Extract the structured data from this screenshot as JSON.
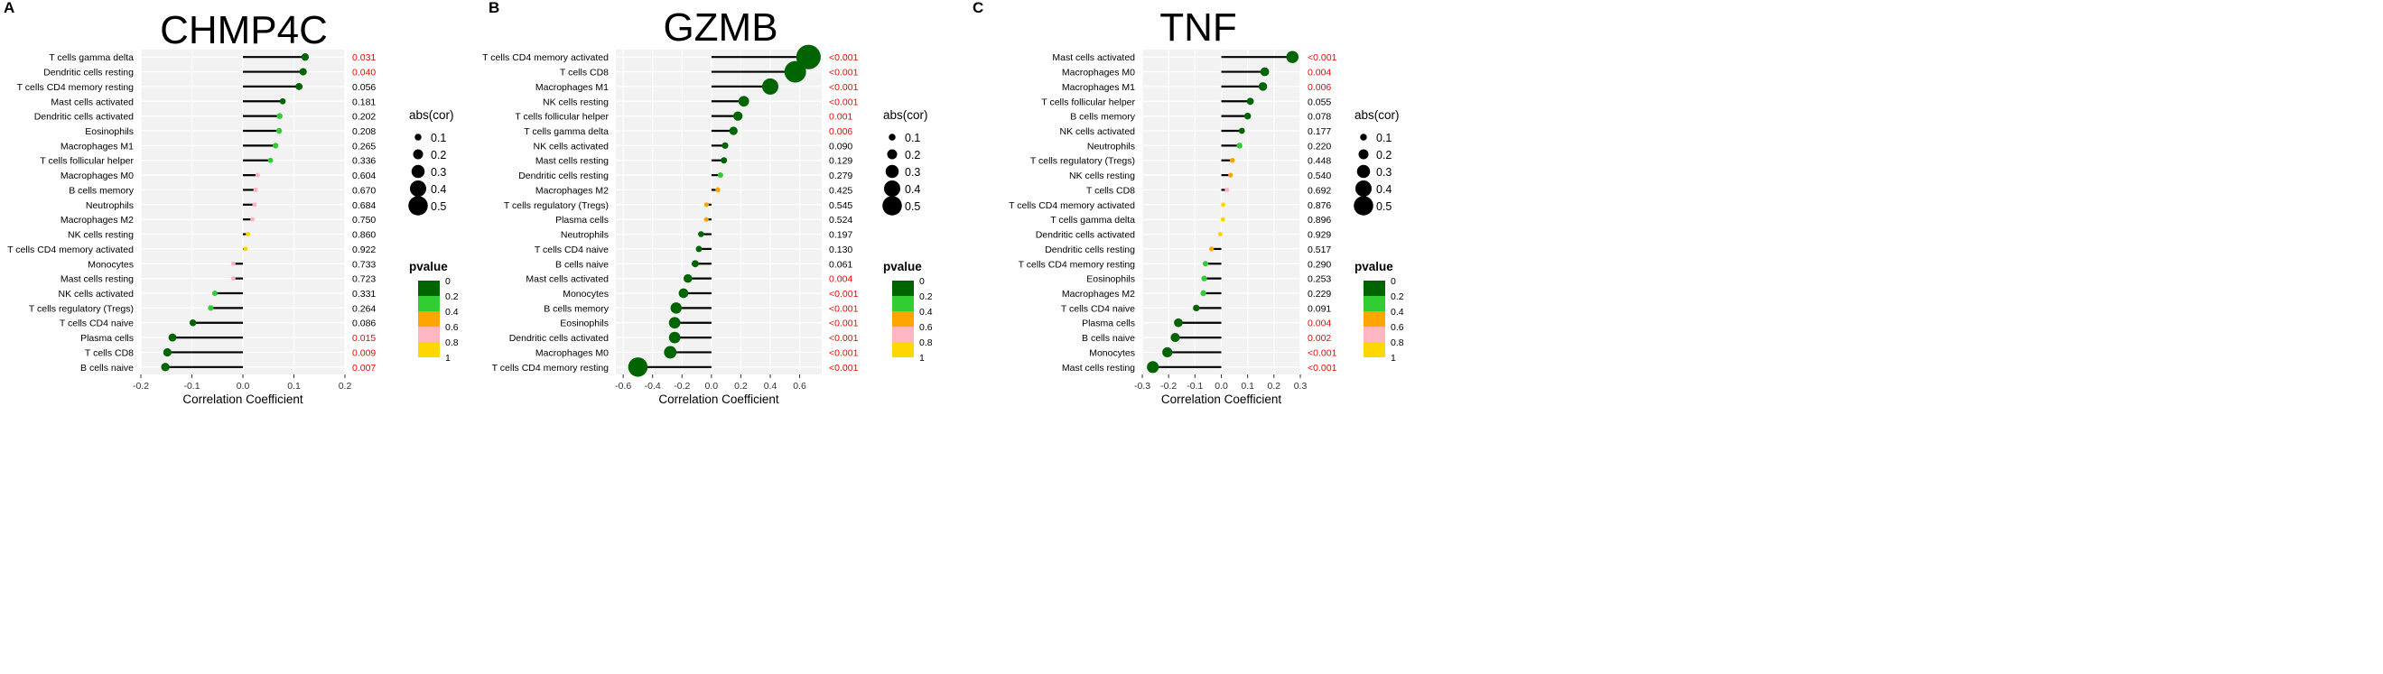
{
  "figure": {
    "size_legend_title": "abs(cor)",
    "pvalue_legend_title": "pvalue",
    "size_legend_labels": [
      "0.1",
      "0.2",
      "0.3",
      "0.4",
      "0.5"
    ],
    "pvalue_legend_labels": [
      "0",
      "0.2",
      "0.4",
      "0.6",
      "0.8",
      "1"
    ],
    "pvalue_colors": [
      "#006400",
      "#32cd32",
      "#ffa500",
      "#ffb6c1",
      "#ffd700"
    ],
    "significant_color": "#ff0000",
    "panel_background": "#f2f2f2"
  },
  "chart_data": [
    {
      "type": "scatter",
      "panel_label": "A",
      "title": "CHMP4C",
      "xlabel": "Correlation Coefficient",
      "ylabel": "",
      "xlim": [
        -0.2,
        0.2
      ],
      "xticks": [
        "-0.2",
        "-0.1",
        "0.0",
        "0.1",
        "0.2"
      ],
      "xtick_values": [
        -0.2,
        -0.1,
        0.0,
        0.1,
        0.2
      ],
      "rows": [
        {
          "label": "T cells gamma delta",
          "cor": 0.122,
          "p": 0.031,
          "p_text": "0.031"
        },
        {
          "label": "Dendritic cells resting",
          "cor": 0.118,
          "p": 0.04,
          "p_text": "0.040"
        },
        {
          "label": "T cells CD4 memory resting",
          "cor": 0.11,
          "p": 0.056,
          "p_text": "0.056"
        },
        {
          "label": "Mast cells activated",
          "cor": 0.078,
          "p": 0.181,
          "p_text": "0.181"
        },
        {
          "label": "Dendritic cells activated",
          "cor": 0.072,
          "p": 0.202,
          "p_text": "0.202"
        },
        {
          "label": "Eosinophils",
          "cor": 0.071,
          "p": 0.208,
          "p_text": "0.208"
        },
        {
          "label": "Macrophages M1",
          "cor": 0.064,
          "p": 0.265,
          "p_text": "0.265"
        },
        {
          "label": "T cells follicular helper",
          "cor": 0.054,
          "p": 0.336,
          "p_text": "0.336"
        },
        {
          "label": "Macrophages M0",
          "cor": 0.029,
          "p": 0.604,
          "p_text": "0.604"
        },
        {
          "label": "B cells memory",
          "cor": 0.025,
          "p": 0.67,
          "p_text": "0.670"
        },
        {
          "label": "Neutrophils",
          "cor": 0.023,
          "p": 0.684,
          "p_text": "0.684"
        },
        {
          "label": "Macrophages M2",
          "cor": 0.019,
          "p": 0.75,
          "p_text": "0.750"
        },
        {
          "label": "NK cells resting",
          "cor": 0.01,
          "p": 0.86,
          "p_text": "0.860"
        },
        {
          "label": "T cells CD4 memory activated",
          "cor": 0.005,
          "p": 0.922,
          "p_text": "0.922"
        },
        {
          "label": "Monocytes",
          "cor": -0.019,
          "p": 0.733,
          "p_text": "0.733"
        },
        {
          "label": "Mast cells resting",
          "cor": -0.019,
          "p": 0.723,
          "p_text": "0.723"
        },
        {
          "label": "NK cells activated",
          "cor": -0.055,
          "p": 0.331,
          "p_text": "0.331"
        },
        {
          "label": "T cells regulatory (Tregs)",
          "cor": -0.063,
          "p": 0.264,
          "p_text": "0.264"
        },
        {
          "label": "T cells CD4 naive",
          "cor": -0.098,
          "p": 0.086,
          "p_text": "0.086"
        },
        {
          "label": "Plasma cells",
          "cor": -0.138,
          "p": 0.015,
          "p_text": "0.015"
        },
        {
          "label": "T cells CD8",
          "cor": -0.148,
          "p": 0.009,
          "p_text": "0.009"
        },
        {
          "label": "B cells naive",
          "cor": -0.152,
          "p": 0.007,
          "p_text": "0.007"
        }
      ]
    },
    {
      "type": "scatter",
      "panel_label": "B",
      "title": "GZMB",
      "xlabel": "Correlation Coefficient",
      "ylabel": "",
      "xlim": [
        -0.65,
        0.75
      ],
      "xticks": [
        "-0.6",
        "-0.4",
        "-0.2",
        "0.0",
        "0.2",
        "0.4",
        "0.6"
      ],
      "xtick_values": [
        -0.6,
        -0.4,
        -0.2,
        0.0,
        0.2,
        0.4,
        0.6
      ],
      "rows": [
        {
          "label": "T cells CD4 memory activated",
          "cor": 0.66,
          "p": 0.0005,
          "p_text": "<0.001"
        },
        {
          "label": "T cells CD8",
          "cor": 0.57,
          "p": 0.0005,
          "p_text": "<0.001"
        },
        {
          "label": "Macrophages M1",
          "cor": 0.4,
          "p": 0.0005,
          "p_text": "<0.001"
        },
        {
          "label": "NK cells resting",
          "cor": 0.22,
          "p": 0.0005,
          "p_text": "<0.001"
        },
        {
          "label": "T cells follicular helper",
          "cor": 0.18,
          "p": 0.001,
          "p_text": "0.001"
        },
        {
          "label": "T cells gamma delta",
          "cor": 0.15,
          "p": 0.006,
          "p_text": "0.006"
        },
        {
          "label": "NK cells activated",
          "cor": 0.093,
          "p": 0.09,
          "p_text": "0.090"
        },
        {
          "label": "Mast cells resting",
          "cor": 0.085,
          "p": 0.129,
          "p_text": "0.129"
        },
        {
          "label": "Dendritic cells resting",
          "cor": 0.061,
          "p": 0.279,
          "p_text": "0.279"
        },
        {
          "label": "Macrophages M2",
          "cor": 0.044,
          "p": 0.425,
          "p_text": "0.425"
        },
        {
          "label": "T cells regulatory (Tregs)",
          "cor": -0.034,
          "p": 0.545,
          "p_text": "0.545"
        },
        {
          "label": "Plasma cells",
          "cor": -0.035,
          "p": 0.524,
          "p_text": "0.524"
        },
        {
          "label": "Neutrophils",
          "cor": -0.071,
          "p": 0.197,
          "p_text": "0.197"
        },
        {
          "label": "T cells CD4 naive",
          "cor": -0.085,
          "p": 0.13,
          "p_text": "0.130"
        },
        {
          "label": "B cells naive",
          "cor": -0.11,
          "p": 0.061,
          "p_text": "0.061"
        },
        {
          "label": "Mast cells activated",
          "cor": -0.16,
          "p": 0.004,
          "p_text": "0.004"
        },
        {
          "label": "Monocytes",
          "cor": -0.19,
          "p": 0.0005,
          "p_text": "<0.001"
        },
        {
          "label": "B cells memory",
          "cor": -0.24,
          "p": 0.0005,
          "p_text": "<0.001"
        },
        {
          "label": "Eosinophils",
          "cor": -0.25,
          "p": 0.0005,
          "p_text": "<0.001"
        },
        {
          "label": "Dendritic cells activated",
          "cor": -0.25,
          "p": 0.0005,
          "p_text": "<0.001"
        },
        {
          "label": "Macrophages M0",
          "cor": -0.28,
          "p": 0.0005,
          "p_text": "<0.001"
        },
        {
          "label": "T cells CD4 memory resting",
          "cor": -0.5,
          "p": 0.0005,
          "p_text": "<0.001"
        }
      ]
    },
    {
      "type": "scatter",
      "panel_label": "C",
      "title": "TNF",
      "xlabel": "Correlation Coefficient",
      "ylabel": "",
      "xlim": [
        -0.3,
        0.3
      ],
      "xticks": [
        "-0.3",
        "-0.2",
        "-0.1",
        "0.0",
        "0.1",
        "0.2",
        "0.3"
      ],
      "xtick_values": [
        -0.3,
        -0.2,
        -0.1,
        0.0,
        0.1,
        0.2,
        0.3
      ],
      "rows": [
        {
          "label": "Mast cells activated",
          "cor": 0.27,
          "p": 0.0005,
          "p_text": "<0.001"
        },
        {
          "label": "Macrophages M0",
          "cor": 0.165,
          "p": 0.004,
          "p_text": "0.004"
        },
        {
          "label": "Macrophages M1",
          "cor": 0.158,
          "p": 0.006,
          "p_text": "0.006"
        },
        {
          "label": "T cells follicular helper",
          "cor": 0.11,
          "p": 0.055,
          "p_text": "0.055"
        },
        {
          "label": "B cells memory",
          "cor": 0.1,
          "p": 0.078,
          "p_text": "0.078"
        },
        {
          "label": "NK cells activated",
          "cor": 0.078,
          "p": 0.177,
          "p_text": "0.177"
        },
        {
          "label": "Neutrophils",
          "cor": 0.069,
          "p": 0.22,
          "p_text": "0.220"
        },
        {
          "label": "T cells regulatory (Tregs)",
          "cor": 0.042,
          "p": 0.448,
          "p_text": "0.448"
        },
        {
          "label": "NK cells resting",
          "cor": 0.035,
          "p": 0.54,
          "p_text": "0.540"
        },
        {
          "label": "T cells CD8",
          "cor": 0.022,
          "p": 0.692,
          "p_text": "0.692"
        },
        {
          "label": "T cells CD4 memory activated",
          "cor": 0.007,
          "p": 0.876,
          "p_text": "0.876"
        },
        {
          "label": "T cells gamma delta",
          "cor": 0.006,
          "p": 0.896,
          "p_text": "0.896"
        },
        {
          "label": "Dendritic cells activated",
          "cor": -0.004,
          "p": 0.929,
          "p_text": "0.929"
        },
        {
          "label": "Dendritic cells resting",
          "cor": -0.037,
          "p": 0.517,
          "p_text": "0.517"
        },
        {
          "label": "T cells CD4 memory resting",
          "cor": -0.06,
          "p": 0.29,
          "p_text": "0.290"
        },
        {
          "label": "Eosinophils",
          "cor": -0.065,
          "p": 0.253,
          "p_text": "0.253"
        },
        {
          "label": "Macrophages M2",
          "cor": -0.068,
          "p": 0.229,
          "p_text": "0.229"
        },
        {
          "label": "T cells CD4 naive",
          "cor": -0.095,
          "p": 0.091,
          "p_text": "0.091"
        },
        {
          "label": "Plasma cells",
          "cor": -0.163,
          "p": 0.004,
          "p_text": "0.004"
        },
        {
          "label": "B cells naive",
          "cor": -0.175,
          "p": 0.002,
          "p_text": "0.002"
        },
        {
          "label": "Monocytes",
          "cor": -0.205,
          "p": 0.0005,
          "p_text": "<0.001"
        },
        {
          "label": "Mast cells resting",
          "cor": -0.26,
          "p": 0.0005,
          "p_text": "<0.001"
        }
      ]
    }
  ]
}
